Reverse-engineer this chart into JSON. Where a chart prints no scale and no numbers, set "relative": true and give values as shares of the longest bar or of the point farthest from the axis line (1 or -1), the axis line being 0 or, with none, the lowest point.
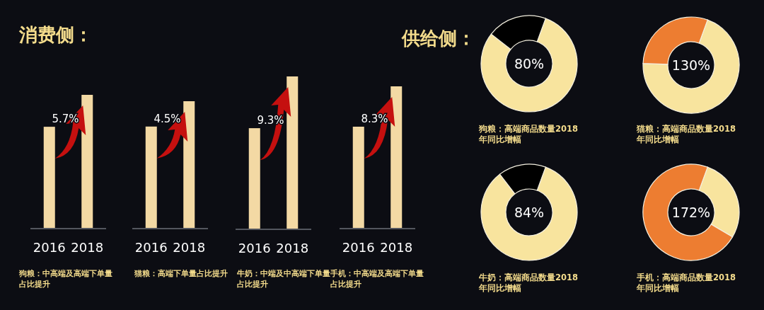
{
  "chart_data": [
    {
      "type": "bar",
      "relative": true,
      "title": "消费侧：",
      "categories": [
        "2016",
        "2018"
      ],
      "values": [
        0.76,
        1
      ],
      "color": "#f3d9a4",
      "xlabel": "狗粮：中高端及高端下单量占比提升",
      "annotations": [
        "5.7%"
      ]
    },
    {
      "type": "bar",
      "relative": true,
      "categories": [
        "2016",
        "2018"
      ],
      "values": [
        0.8,
        1
      ],
      "color": "#f3d9a4",
      "xlabel": "猫粮：高端下单量占比提升",
      "annotations": [
        "4.5%"
      ]
    },
    {
      "type": "bar",
      "relative": true,
      "categories": [
        "2016",
        "2018"
      ],
      "values": [
        0.66,
        1
      ],
      "color": "#f3d9a4",
      "xlabel": "牛奶：中端及中高端下单量占比提升",
      "annotations": [
        "9.3%"
      ]
    },
    {
      "type": "bar",
      "relative": true,
      "categories": [
        "2016",
        "2018"
      ],
      "values": [
        0.715,
        1
      ],
      "color": "#f3d9a4",
      "xlabel": "手机：中高端及高端下单量占比提升",
      "annotations": [
        "8.3%"
      ]
    },
    {
      "type": "donut",
      "title": "供给侧：",
      "categories": [
        null,
        null
      ],
      "values": [
        80,
        20
      ],
      "colors": [
        "#f8e49e",
        "#000000"
      ],
      "xlabel": "狗粮：高端商品数量2018年同比增幅",
      "annotations": [
        "80%"
      ]
    },
    {
      "type": "donut",
      "categories": [
        null,
        null
      ],
      "values": [
        70,
        30
      ],
      "colors": [
        "#f8e49e",
        "#ed7d31"
      ],
      "xlabel": "猫粮：高端商品数量2018年同比增幅",
      "annotations": [
        "130%"
      ]
    },
    {
      "type": "donut",
      "categories": [
        null,
        null
      ],
      "values": [
        84,
        16
      ],
      "colors": [
        "#f8e49e",
        "#000000"
      ],
      "xlabel": "牛奶：高端商品数量2018年同比增幅",
      "annotations": [
        "84%"
      ]
    },
    {
      "type": "donut",
      "categories": [
        null,
        null
      ],
      "values": [
        28,
        72
      ],
      "colors": [
        "#f8e49e",
        "#ed7d31"
      ],
      "xlabel": "手机：高端商品数量2018年同比增幅",
      "annotations": [
        "172%"
      ]
    }
  ]
}
